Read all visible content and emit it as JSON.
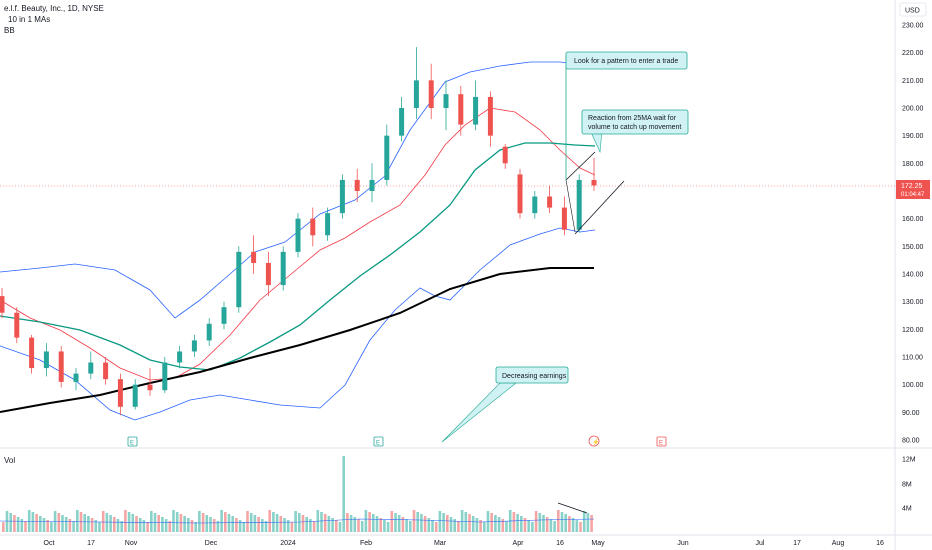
{
  "header": {
    "title": "e.l.f. Beauty, Inc., 1D, NYSE",
    "ma_indicator": "10 in 1 MAs",
    "bb_indicator": "BB",
    "volume_label": "Vol",
    "currency": "USD"
  },
  "price_tag": {
    "value": "172.25",
    "countdown": "01:04:47"
  },
  "earnings_marker": "E",
  "callouts": [
    {
      "id": "pattern",
      "text": [
        "Look for a pattern to enter a trade"
      ]
    },
    {
      "id": "reaction",
      "text": [
        "Reaction from 25MA wait for",
        "volume to catch up movement"
      ]
    },
    {
      "id": "earnings",
      "text": [
        "Decreasing earnings"
      ]
    }
  ],
  "chart_data": {
    "type": "candlestick",
    "title": "e.l.f. Beauty, Inc., 1D, NYSE",
    "y_axis": {
      "ticks": [
        "230.00",
        "220.00",
        "210.00",
        "200.00",
        "190.00",
        "180.00",
        "170.00",
        "160.00",
        "150.00",
        "140.00",
        "130.00",
        "120.00",
        "110.00",
        "100.00",
        "90.00",
        "80.00"
      ],
      "ylim": [
        78,
        232
      ]
    },
    "volume_axis": {
      "ticks": [
        "12M",
        "8M",
        "4M"
      ]
    },
    "x_axis": {
      "ticks": [
        "Oct",
        "17",
        "Nov",
        "Dec",
        "2024",
        "Feb",
        "Mar",
        "Apr",
        "16",
        "May",
        "Jun",
        "Jul",
        "17",
        "Aug",
        "16"
      ]
    },
    "candles_approx": [
      {
        "t": "Sep-27",
        "o": 132,
        "h": 135,
        "l": 124,
        "c": 126
      },
      {
        "t": "Oct-02",
        "o": 126,
        "h": 128,
        "l": 115,
        "c": 117
      },
      {
        "t": "Oct-06",
        "o": 117,
        "h": 118,
        "l": 104,
        "c": 106
      },
      {
        "t": "Oct-10",
        "o": 106,
        "h": 115,
        "l": 103,
        "c": 112
      },
      {
        "t": "Oct-13",
        "o": 112,
        "h": 114,
        "l": 99,
        "c": 101
      },
      {
        "t": "Oct-19",
        "o": 101,
        "h": 106,
        "l": 98,
        "c": 104
      },
      {
        "t": "Oct-24",
        "o": 104,
        "h": 112,
        "l": 102,
        "c": 108
      },
      {
        "t": "Oct-27",
        "o": 108,
        "h": 110,
        "l": 100,
        "c": 102
      },
      {
        "t": "Nov-01",
        "o": 102,
        "h": 104,
        "l": 89,
        "c": 92
      },
      {
        "t": "Nov-06",
        "o": 92,
        "h": 102,
        "l": 91,
        "c": 100
      },
      {
        "t": "Nov-10",
        "o": 100,
        "h": 106,
        "l": 96,
        "c": 98
      },
      {
        "t": "Nov-15",
        "o": 98,
        "h": 110,
        "l": 97,
        "c": 108
      },
      {
        "t": "Nov-21",
        "o": 108,
        "h": 114,
        "l": 106,
        "c": 112
      },
      {
        "t": "Nov-28",
        "o": 112,
        "h": 118,
        "l": 110,
        "c": 116
      },
      {
        "t": "Dec-04",
        "o": 116,
        "h": 124,
        "l": 114,
        "c": 122
      },
      {
        "t": "Dec-08",
        "o": 122,
        "h": 130,
        "l": 120,
        "c": 128
      },
      {
        "t": "Dec-13",
        "o": 128,
        "h": 150,
        "l": 126,
        "c": 148
      },
      {
        "t": "Dec-19",
        "o": 148,
        "h": 154,
        "l": 140,
        "c": 144
      },
      {
        "t": "Dec-26",
        "o": 144,
        "h": 148,
        "l": 132,
        "c": 136
      },
      {
        "t": "Jan-03",
        "o": 136,
        "h": 150,
        "l": 134,
        "c": 148
      },
      {
        "t": "Jan-09",
        "o": 148,
        "h": 162,
        "l": 146,
        "c": 160
      },
      {
        "t": "Jan-16",
        "o": 160,
        "h": 164,
        "l": 150,
        "c": 154
      },
      {
        "t": "Jan-22",
        "o": 154,
        "h": 164,
        "l": 152,
        "c": 162
      },
      {
        "t": "Jan-29",
        "o": 162,
        "h": 176,
        "l": 160,
        "c": 174
      },
      {
        "t": "Feb-05",
        "o": 174,
        "h": 178,
        "l": 166,
        "c": 170
      },
      {
        "t": "Feb-12",
        "o": 170,
        "h": 180,
        "l": 166,
        "c": 174
      },
      {
        "t": "Feb-20",
        "o": 174,
        "h": 194,
        "l": 172,
        "c": 190
      },
      {
        "t": "Feb-26",
        "o": 190,
        "h": 204,
        "l": 188,
        "c": 200
      },
      {
        "t": "Mar-01",
        "o": 200,
        "h": 222,
        "l": 196,
        "c": 210
      },
      {
        "t": "Mar-07",
        "o": 210,
        "h": 216,
        "l": 196,
        "c": 200
      },
      {
        "t": "Mar-13",
        "o": 200,
        "h": 210,
        "l": 192,
        "c": 205
      },
      {
        "t": "Mar-20",
        "o": 205,
        "h": 208,
        "l": 190,
        "c": 194
      },
      {
        "t": "Mar-27",
        "o": 194,
        "h": 210,
        "l": 192,
        "c": 204
      },
      {
        "t": "Apr-03",
        "o": 204,
        "h": 206,
        "l": 186,
        "c": 190
      },
      {
        "t": "Apr-05",
        "o": 186,
        "h": 187,
        "l": 178,
        "c": 180
      },
      {
        "t": "Apr-08",
        "o": 176,
        "h": 178,
        "l": 160,
        "c": 162
      },
      {
        "t": "Apr-12",
        "o": 162,
        "h": 170,
        "l": 160,
        "c": 168
      },
      {
        "t": "Apr-16",
        "o": 168,
        "h": 172,
        "l": 162,
        "c": 164
      },
      {
        "t": "Apr-19",
        "o": 164,
        "h": 168,
        "l": 154,
        "c": 156
      },
      {
        "t": "Apr-23",
        "o": 156,
        "h": 176,
        "l": 155,
        "c": 174
      },
      {
        "t": "Apr-26",
        "o": 174,
        "h": 182,
        "l": 170,
        "c": 172
      }
    ],
    "series": [
      {
        "color": "#26a69a"
      },
      {
        "color": "#000000"
      },
      {
        "color": "#ef5350"
      },
      {
        "color": "#2962ff"
      }
    ]
  },
  "colors": {
    "up": "#26a69a",
    "down": "#ef5350",
    "ma50": "#089981",
    "ma200": "#000000",
    "ma25": "#f23645",
    "bb": "#2962ff",
    "callout_fill": "#d1f2f4",
    "callout_border": "#22ab94"
  }
}
